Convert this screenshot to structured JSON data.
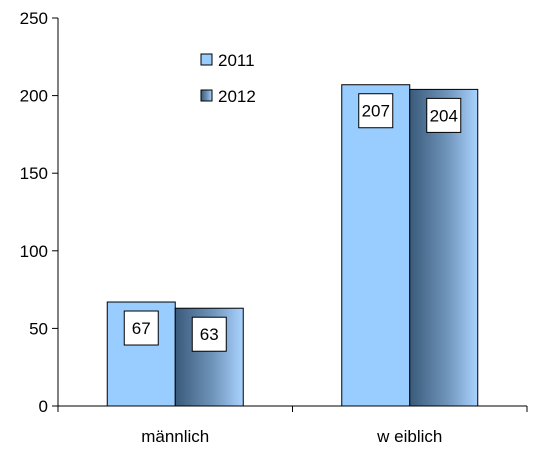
{
  "chart_data": {
    "type": "bar",
    "categories": [
      "männlich",
      "w eiblich"
    ],
    "series": [
      {
        "name": "2011",
        "values": [
          67,
          207
        ]
      },
      {
        "name": "2012",
        "values": [
          63,
          204
        ]
      }
    ],
    "title": "",
    "xlabel": "",
    "ylabel": "",
    "ylim": [
      0,
      250
    ],
    "yticks": [
      "0",
      "50",
      "100",
      "150",
      "200",
      "250"
    ],
    "grid": false,
    "legend_position": "top-center",
    "data_labels": true,
    "colors": {
      "series_2011": "#99ccff",
      "series_2012_dark": "#3a5a7a",
      "series_2012_light": "#99ccff",
      "axis": "#000000"
    }
  }
}
